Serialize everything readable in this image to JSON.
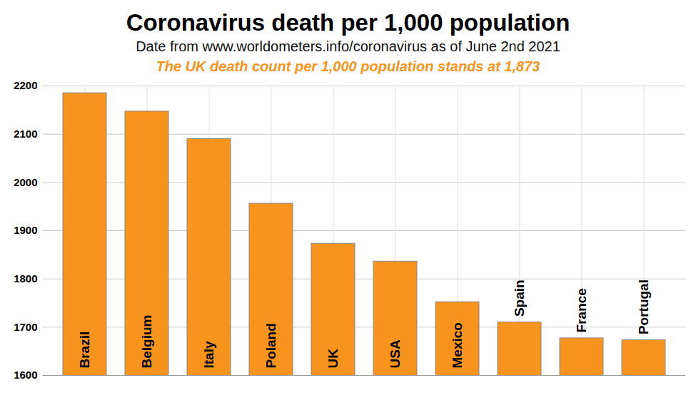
{
  "chart_data": {
    "type": "bar",
    "title": "Coronavirus death per 1,000 population",
    "subtitle": "Date from www.worldometers.info/coronavirus as of June 2nd 2021",
    "annotation": "The UK death count per 1,000 population stands at 1,873",
    "categories": [
      "Brazil",
      "Belgium",
      "Italy",
      "Poland",
      "UK",
      "USA",
      "Mexico",
      "Spain",
      "France",
      "Portugal"
    ],
    "values": [
      2185,
      2147,
      2090,
      1956,
      1873,
      1836,
      1752,
      1710,
      1677,
      1673
    ],
    "color": "#f7941d",
    "ylim": [
      1600,
      2200
    ],
    "yticks": [
      1600,
      1700,
      1800,
      1900,
      2000,
      2100,
      2200
    ],
    "grid": true
  }
}
